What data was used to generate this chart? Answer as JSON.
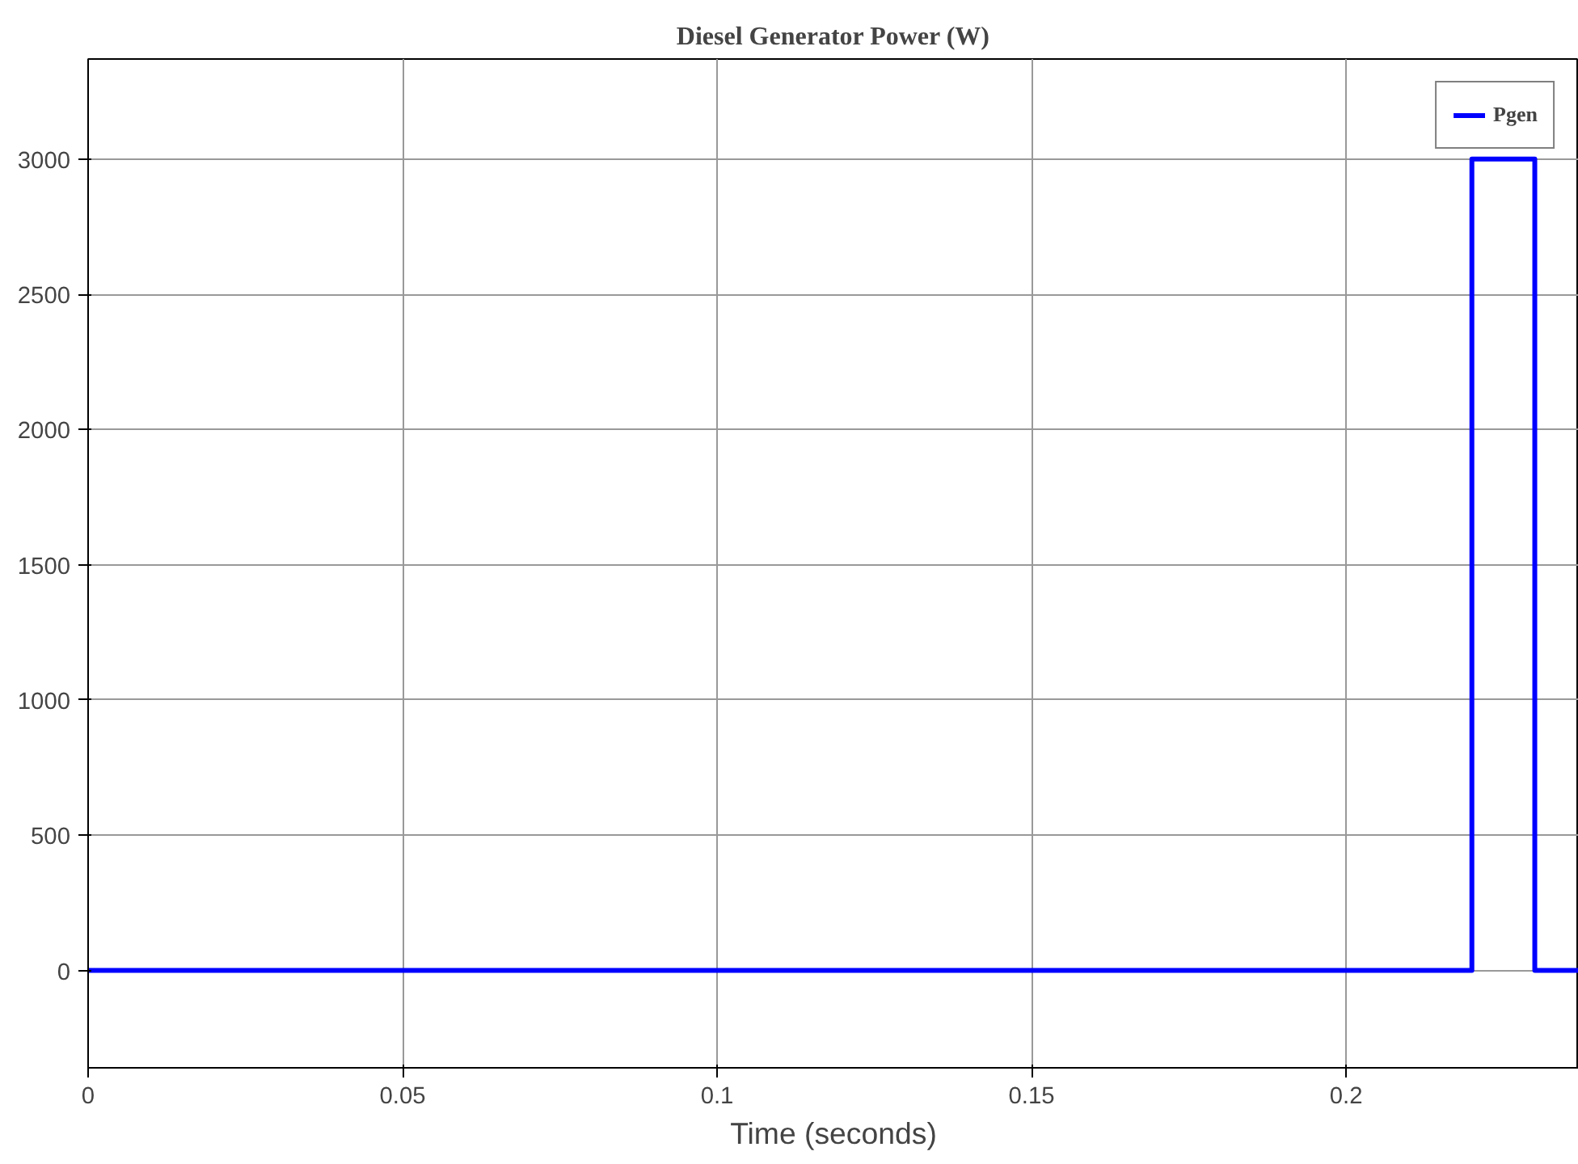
{
  "chart_data": {
    "type": "line",
    "title": "Diesel Generator Power (W)",
    "xlabel": "Time (seconds)",
    "x": [
      0,
      0.22,
      0.22,
      0.23,
      0.23,
      0.237
    ],
    "series": [
      {
        "name": "Pgen",
        "color": "#0000ff",
        "values": [
          0,
          0,
          3000,
          3000,
          0,
          0
        ]
      }
    ],
    "xlim": [
      0,
      0.237
    ],
    "ylim": [
      -360,
      3370
    ],
    "xticks": [
      0,
      0.05,
      0.1,
      0.15,
      0.2
    ],
    "yticks": [
      0,
      500,
      1000,
      1500,
      2000,
      2500,
      3000
    ],
    "grid": true,
    "legend": "top right",
    "line_style": "solid"
  }
}
